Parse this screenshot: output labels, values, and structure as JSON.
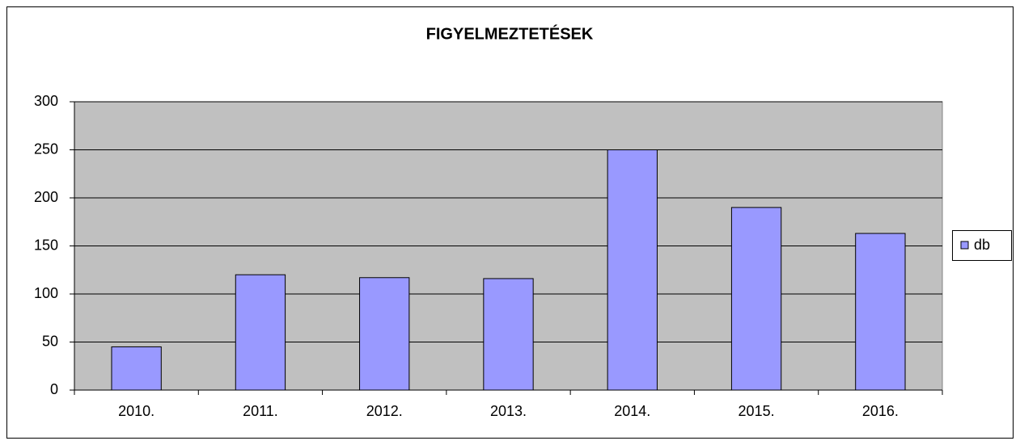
{
  "chart_data": {
    "type": "bar",
    "title": "FIGYELMEZTETÉSEK",
    "categories": [
      "2010.",
      "2011.",
      "2012.",
      "2013.",
      "2014.",
      "2015.",
      "2016."
    ],
    "series": [
      {
        "name": "db",
        "color": "#9999ff",
        "values": [
          45,
          120,
          117,
          116,
          250,
          190,
          163
        ]
      }
    ],
    "ylim": [
      0,
      300
    ],
    "yticks": [
      0,
      50,
      100,
      150,
      200,
      250,
      300
    ],
    "grid": true,
    "legend": "right"
  }
}
